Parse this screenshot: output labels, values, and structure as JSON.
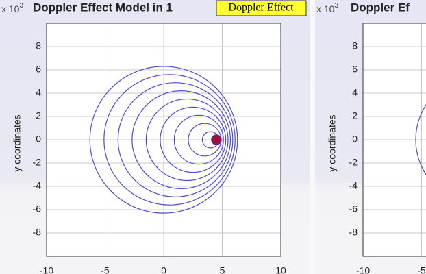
{
  "chart_data": [
    {
      "type": "circles",
      "title": "Doppler Effect Model in 1",
      "tooltip": "Doppler Effect",
      "exponent_label": {
        "base": "x 10",
        "power": "3"
      },
      "ylabel": "y coordinates",
      "xlim": [
        -10,
        10
      ],
      "ylim": [
        -10,
        10
      ],
      "xticks": [
        -10,
        -5,
        0,
        5,
        10
      ],
      "yticks": [
        -8,
        -6,
        -4,
        -2,
        0,
        2,
        4,
        6,
        8
      ],
      "grid": true,
      "color": "#4b4bd0",
      "x": [
        0,
        0.5,
        1,
        1.5,
        2,
        2.5,
        3,
        3.5,
        4
      ],
      "y": [
        0,
        0,
        0,
        0,
        0,
        0,
        0,
        0,
        0
      ],
      "r": [
        6.3,
        5.6,
        4.9,
        4.2,
        3.5,
        2.8,
        2.1,
        1.4,
        0.7
      ],
      "source": {
        "x": 4.5,
        "y": 0,
        "color": "#a0103a"
      }
    },
    {
      "type": "circles",
      "title": "Doppler Ef",
      "exponent_label": {
        "base": "x 10",
        "power": "3"
      },
      "ylabel": "y coordinates",
      "xlim": [
        -10,
        10
      ],
      "ylim": [
        -10,
        10
      ],
      "xticks": [
        -10,
        -5
      ],
      "yticks": [
        -8,
        -6,
        -4,
        -2,
        0,
        2,
        4,
        6,
        8
      ],
      "grid": true,
      "color": "#4b4bd0",
      "x": [
        0
      ],
      "y": [
        0
      ],
      "r": [
        5.5
      ]
    }
  ]
}
